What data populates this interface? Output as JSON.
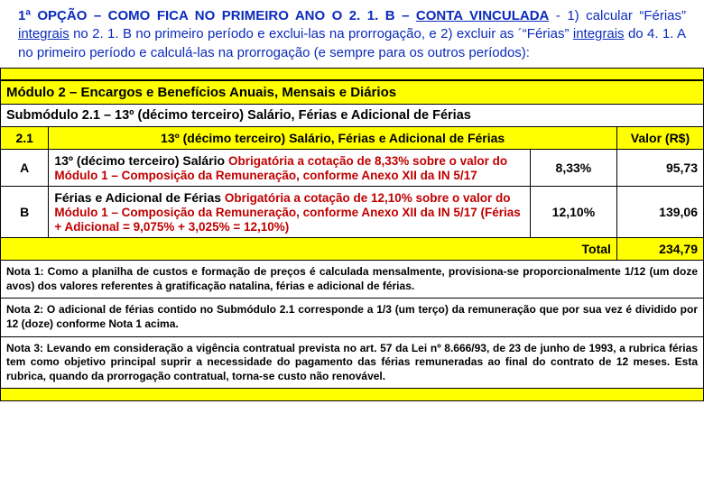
{
  "intro": {
    "lead_html": "1ª OPÇÃO – COMO FICA NO PRIMEIRO ANO O 2. 1. B – <span class='u'>CONTA VINCULADA</span>",
    "body_html": " - 1) calcular “Férias” <span class='u'>integrais</span> no 2. 1. B no primeiro período e exclui-las na prorrogação, e 2) excluir as ´“Férias” <span class='u'>integrais</span> do 4. 1. A no primeiro período e calculá-las na prorrogação (e sempre para os outros períodos):"
  },
  "module_header": "Módulo 2 – Encargos e Benefícios Anuais, Mensais e Diários",
  "sub_header": "Submódulo 2.1 – 13º (décimo terceiro) Salário, Férias e Adicional de Férias",
  "columns": {
    "c1": "2.1",
    "c2": "13º (décimo terceiro) Salário, Férias e Adicional de Férias",
    "c3": "Valor (R$)"
  },
  "rows": [
    {
      "code": "A",
      "label": "13º (décimo terceiro) Salário",
      "req": "Obrigatória a cotação de 8,33% sobre o valor do Módulo 1 – Composição da Remuneração, conforme Anexo XII da IN 5/17",
      "pct": "8,33%",
      "val": "95,73"
    },
    {
      "code": "B",
      "label": "Férias e Adicional de Férias",
      "req": "Obrigatória a cotação de 12,10% sobre o valor do Módulo 1 – Composição da Remuneração, conforme Anexo XII da IN 5/17 (Férias + Adicional = 9,075% + 3,025% = 12,10%)",
      "pct": "12,10%",
      "val": "139,06"
    }
  ],
  "total": {
    "label": "Total",
    "value": "234,79"
  },
  "notes": [
    "Nota 1: Como a planilha de custos e formação de preços é calculada mensalmente, provisiona-se proporcionalmente 1/12 (um doze avos) dos valores referentes à gratificação natalina, férias e adicional de férias.",
    "Nota 2: O adicional de férias contido no Submódulo 2.1 corresponde a 1/3 (um terço) da remuneração que por sua vez é dividido por 12 (doze) conforme Nota 1 acima.",
    "Nota 3: Levando em consideração a vigência contratual prevista no art. 57 da Lei nº 8.666/93, de 23 de junho de 1993, a rubrica férias tem como objetivo principal suprir a necessidade do pagamento das férias remuneradas ao final do contrato de 12 meses. Esta rubrica, quando da prorrogação contratual, torna-se custo não renovável."
  ]
}
